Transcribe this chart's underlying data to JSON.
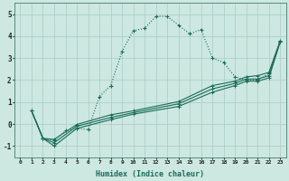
{
  "xlabel": "Humidex (Indice chaleur)",
  "background_color": "#cce8e0",
  "line_color": "#1a6b5a",
  "grid_color": "#a8ccc4",
  "xlim": [
    -0.5,
    23.5
  ],
  "ylim": [
    -1.5,
    5.5
  ],
  "ytick_values": [
    -1,
    0,
    1,
    2,
    3,
    4,
    5
  ],
  "series1_x": [
    1,
    2,
    3,
    4,
    5,
    6,
    7,
    8,
    9,
    10,
    11,
    12,
    13,
    14,
    15,
    16,
    17,
    18,
    19,
    20,
    21,
    22,
    23
  ],
  "series1_y": [
    0.6,
    -0.65,
    -0.75,
    -0.3,
    -0.2,
    -0.25,
    1.25,
    1.75,
    3.3,
    4.25,
    4.35,
    4.9,
    4.9,
    4.5,
    4.1,
    4.3,
    3.0,
    2.8,
    2.15,
    2.0,
    2.0,
    2.3,
    3.75
  ],
  "series2_x": [
    1,
    2,
    3,
    5,
    8,
    10,
    14,
    17,
    19,
    20,
    21,
    22,
    23
  ],
  "series2_y": [
    0.6,
    -0.65,
    -1.0,
    -0.2,
    0.2,
    0.45,
    0.8,
    1.45,
    1.75,
    1.95,
    1.95,
    2.1,
    3.75
  ],
  "series3_x": [
    1,
    2,
    3,
    5,
    8,
    10,
    14,
    17,
    19,
    20,
    21,
    22,
    23
  ],
  "series3_y": [
    0.6,
    -0.65,
    -0.85,
    -0.1,
    0.3,
    0.52,
    0.92,
    1.6,
    1.85,
    2.05,
    2.05,
    2.2,
    3.75
  ],
  "series4_x": [
    1,
    2,
    3,
    5,
    8,
    10,
    14,
    17,
    19,
    20,
    21,
    22,
    23
  ],
  "series4_y": [
    0.6,
    -0.65,
    -0.7,
    -0.02,
    0.42,
    0.6,
    1.02,
    1.75,
    1.95,
    2.15,
    2.2,
    2.35,
    3.8
  ]
}
